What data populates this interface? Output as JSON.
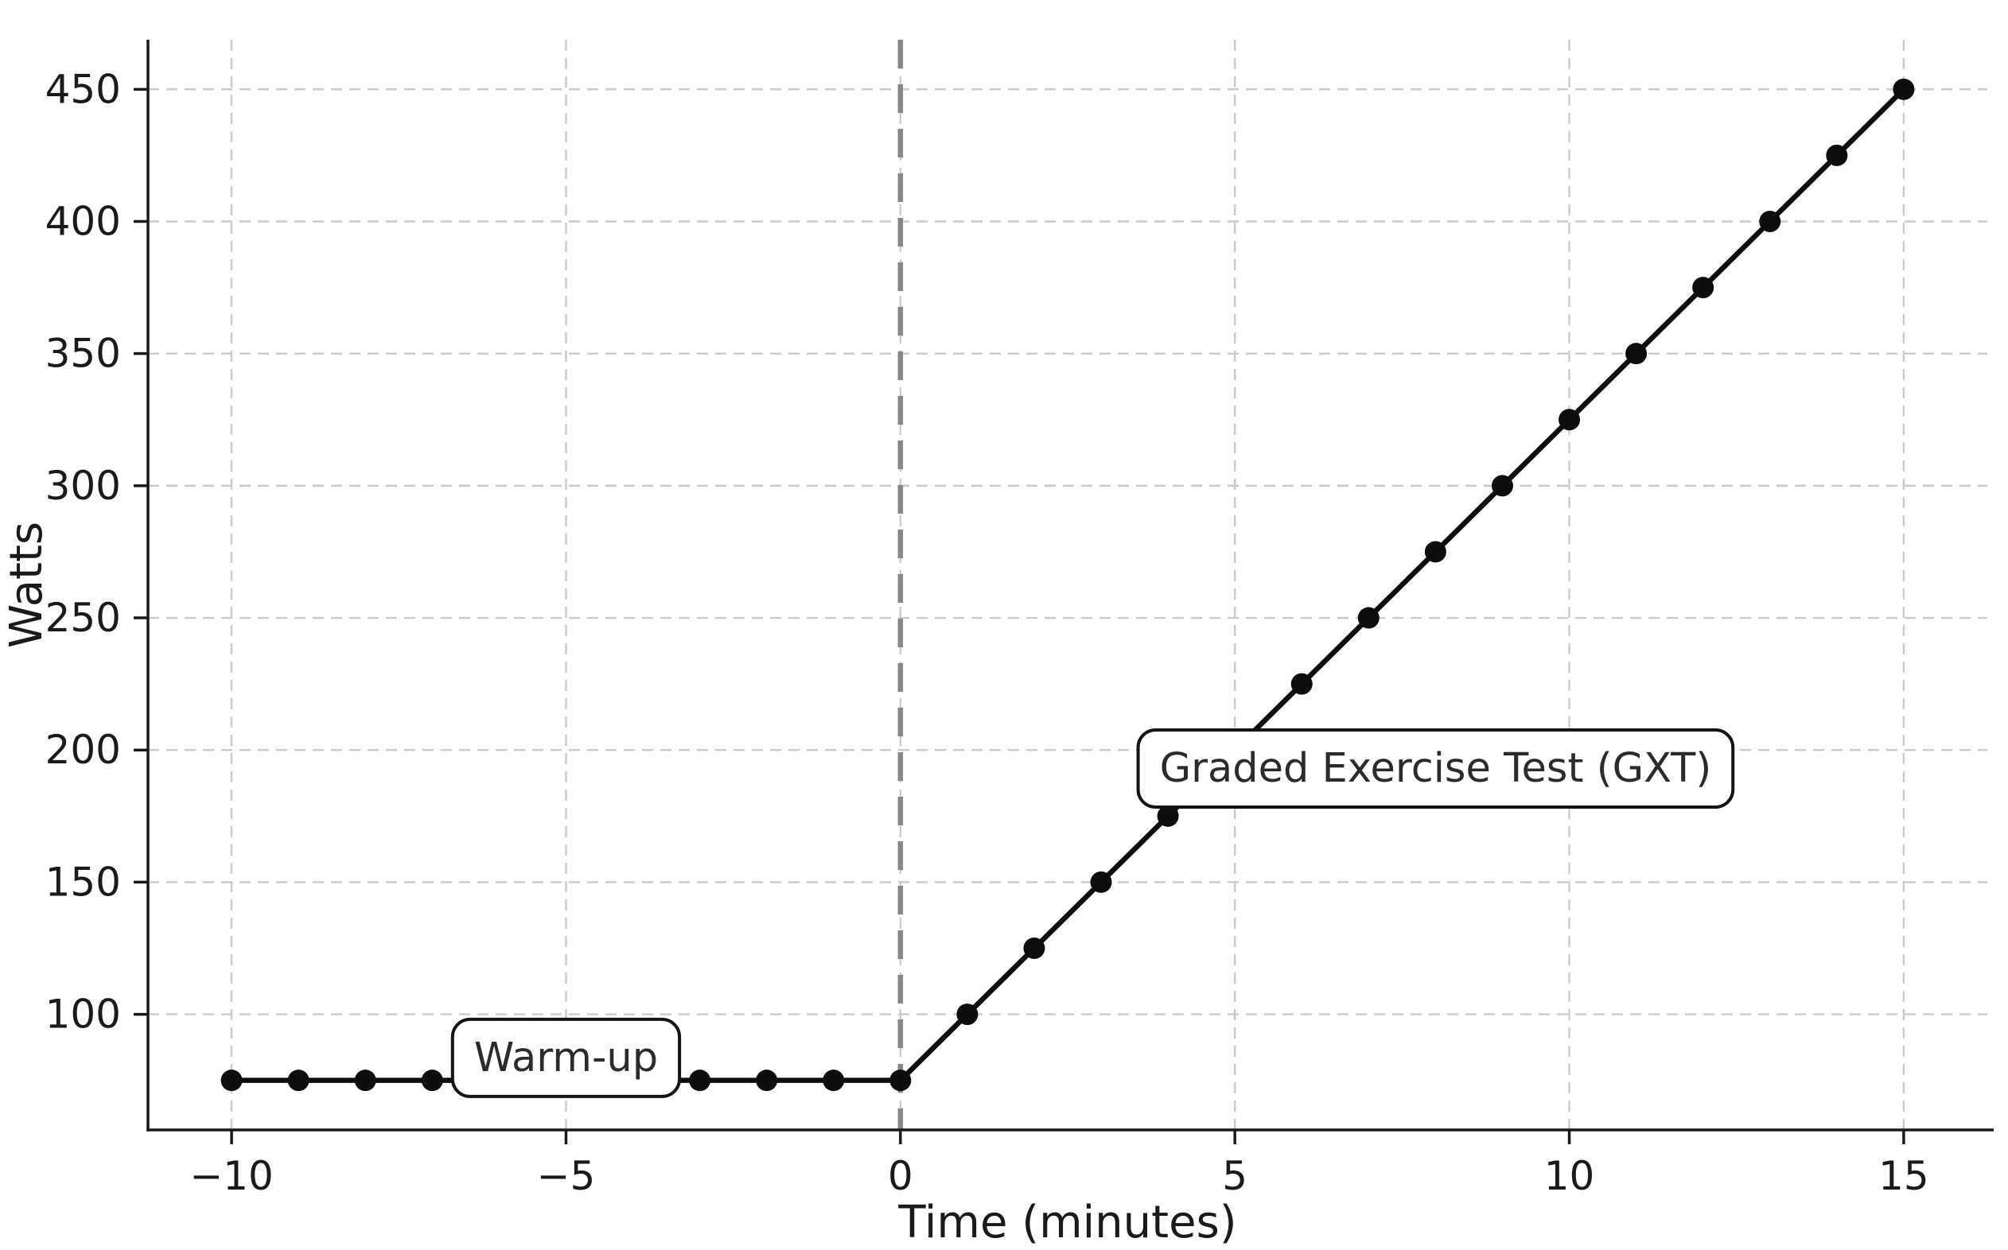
{
  "chart_data": {
    "type": "line",
    "title": "",
    "xlabel": "Time (minutes)",
    "ylabel": "Watts",
    "xlim": [
      -11.25,
      16.25
    ],
    "ylim": [
      56.25,
      468.75
    ],
    "grid": true,
    "legend": null,
    "x_ticks": [
      {
        "value": -10,
        "label": "−10"
      },
      {
        "value": -5,
        "label": "−5"
      },
      {
        "value": 0,
        "label": "0"
      },
      {
        "value": 5,
        "label": "5"
      },
      {
        "value": 10,
        "label": "10"
      },
      {
        "value": 15,
        "label": "15"
      }
    ],
    "y_ticks": [
      {
        "value": 100,
        "label": "100"
      },
      {
        "value": 150,
        "label": "150"
      },
      {
        "value": 200,
        "label": "200"
      },
      {
        "value": 250,
        "label": "250"
      },
      {
        "value": 300,
        "label": "300"
      },
      {
        "value": 350,
        "label": "350"
      },
      {
        "value": 400,
        "label": "400"
      },
      {
        "value": 450,
        "label": "450"
      }
    ],
    "series": [
      {
        "x": [
          -10,
          -9,
          -8,
          -7,
          -6,
          -5,
          -4,
          -3,
          -2,
          -1,
          0,
          1,
          2,
          3,
          4,
          5,
          6,
          7,
          8,
          9,
          10,
          11,
          12,
          13,
          14,
          15
        ],
        "y": [
          75,
          75,
          75,
          75,
          75,
          75,
          75,
          75,
          75,
          75,
          75,
          100,
          125,
          150,
          175,
          200,
          225,
          250,
          275,
          300,
          325,
          350,
          375,
          400,
          425,
          450
        ],
        "marker": "circle"
      }
    ],
    "reference_lines": [
      {
        "axis": "x",
        "value": 0,
        "style": "dashed"
      }
    ],
    "annotations": [
      {
        "id": "warmup-annotation",
        "text": "Warm-up",
        "x": -5,
        "y": 83.5
      },
      {
        "id": "gxt-annotation",
        "text": "Graded Exercise Test (GXT)",
        "x": 8,
        "y": 193
      }
    ],
    "colors": {
      "line": "#0d0d0d",
      "marker": "#0d0d0d",
      "grid": "#cacaca",
      "reference_line": "#878787",
      "spine": "#1a1a1a",
      "tick_text": "#1a1a1a",
      "axis_label_text": "#1a1a1a",
      "annotation_text": "#2b2b2b",
      "annotation_fill": "#ffffff",
      "annotation_border": "#141414",
      "background": "#ffffff"
    }
  }
}
